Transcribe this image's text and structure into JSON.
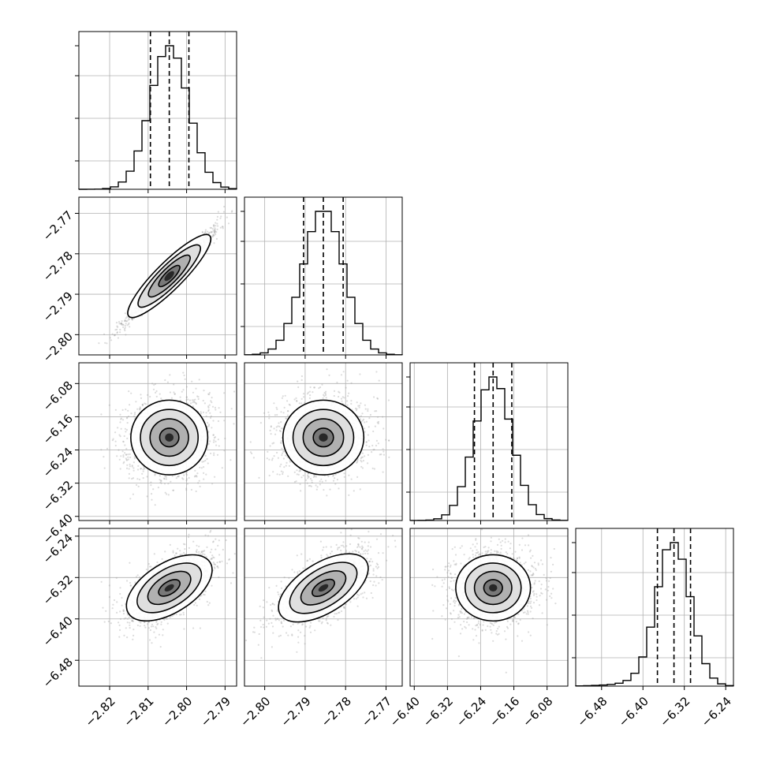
{
  "chart_data": {
    "type": "corner",
    "grid": true,
    "style": {
      "hist_color": "#000000",
      "scatter_color": "#9a9a9a",
      "quantile_line_style": "dashed"
    },
    "parameters": [
      {
        "id": "p0",
        "range": [
          -2.828,
          -2.787
        ],
        "ticks": [
          "-2.82",
          "-2.81",
          "-2.80",
          "-2.79"
        ],
        "tick_values": [
          -2.82,
          -2.81,
          -2.8,
          -2.79
        ],
        "quantiles": [
          -2.8094,
          -2.8045,
          -2.7994
        ],
        "mean": -2.8045,
        "sd": 0.005
      },
      {
        "id": "p1",
        "range": [
          -2.805,
          -2.766
        ],
        "ticks": [
          "-2.80",
          "-2.79",
          "-2.78",
          "-2.77"
        ],
        "tick_values": [
          -2.8,
          -2.79,
          -2.78,
          -2.77
        ],
        "quantiles": [
          -2.7904,
          -2.7855,
          -2.7806
        ],
        "mean": -2.7855,
        "sd": 0.005
      },
      {
        "id": "p2",
        "range": [
          -6.41,
          -6.03
        ],
        "ticks": [
          "-6.40",
          "-6.32",
          "-6.24",
          "-6.16",
          "-6.08"
        ],
        "tick_values": [
          -6.4,
          -6.32,
          -6.24,
          -6.16,
          -6.08
        ],
        "quantiles": [
          -6.255,
          -6.21,
          -6.165
        ],
        "mean": -6.21,
        "sd": 0.045
      },
      {
        "id": "p3",
        "range": [
          -6.53,
          -6.225
        ],
        "ticks": [
          "-6.48",
          "-6.40",
          "-6.32",
          "-6.24"
        ],
        "tick_values": [
          -6.48,
          -6.4,
          -6.32,
          -6.24
        ],
        "quantiles": [
          -6.372,
          -6.34,
          -6.308
        ],
        "mean": -6.34,
        "sd": 0.032
      }
    ],
    "correlations": [
      {
        "pair": [
          "p0",
          "p1"
        ],
        "rho": 0.98
      },
      {
        "pair": [
          "p0",
          "p2"
        ],
        "rho": 0.1
      },
      {
        "pair": [
          "p1",
          "p2"
        ],
        "rho": 0.1
      },
      {
        "pair": [
          "p0",
          "p3"
        ],
        "rho": 0.6
      },
      {
        "pair": [
          "p1",
          "p3"
        ],
        "rho": 0.6
      },
      {
        "pair": [
          "p2",
          "p3"
        ],
        "rho": 0.05
      }
    ]
  }
}
